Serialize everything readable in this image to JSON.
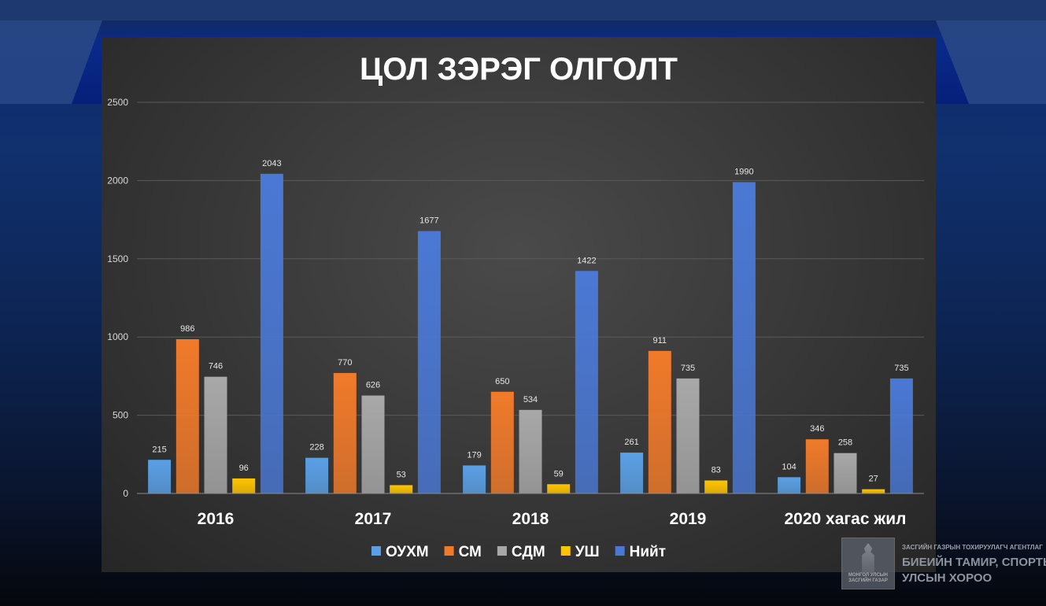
{
  "logo": {
    "line1": "МОНГОЛ УЛСЫН",
    "line2": "ЗАСГИЙН ГАЗАР"
  },
  "agency": {
    "small": "ЗАСГИЙН ГАЗРЫН ТОХИРУУЛАГЧ АГЕНТЛАГ",
    "line1": "БИЕИЙН ТАМИР, СПОРТЫН",
    "line2": "УЛСЫН ХОРОО"
  },
  "chart_data": {
    "type": "bar",
    "title": "ЦОЛ ЗЭРЭГ ОЛГОЛТ",
    "xlabel": "",
    "ylabel": "",
    "ylim": [
      0,
      2500
    ],
    "yticks": [
      0,
      500,
      1000,
      1500,
      2000,
      2500
    ],
    "grid": true,
    "legend_position": "bottom",
    "categories": [
      "2016",
      "2017",
      "2018",
      "2019",
      "2020 хагас жил"
    ],
    "series": [
      {
        "name": "ОУХМ",
        "color": "#5aa0e6",
        "values": [
          215,
          228,
          179,
          261,
          104
        ]
      },
      {
        "name": "СМ",
        "color": "#f07a2a",
        "values": [
          986,
          770,
          650,
          911,
          346
        ]
      },
      {
        "name": "СДМ",
        "color": "#a8a8a8",
        "values": [
          746,
          626,
          534,
          735,
          258
        ]
      },
      {
        "name": "УШ",
        "color": "#ffc400",
        "values": [
          96,
          53,
          59,
          83,
          27
        ]
      },
      {
        "name": "Нийт",
        "color": "#4a78d4",
        "values": [
          2043,
          1677,
          1422,
          1990,
          735
        ]
      }
    ]
  }
}
